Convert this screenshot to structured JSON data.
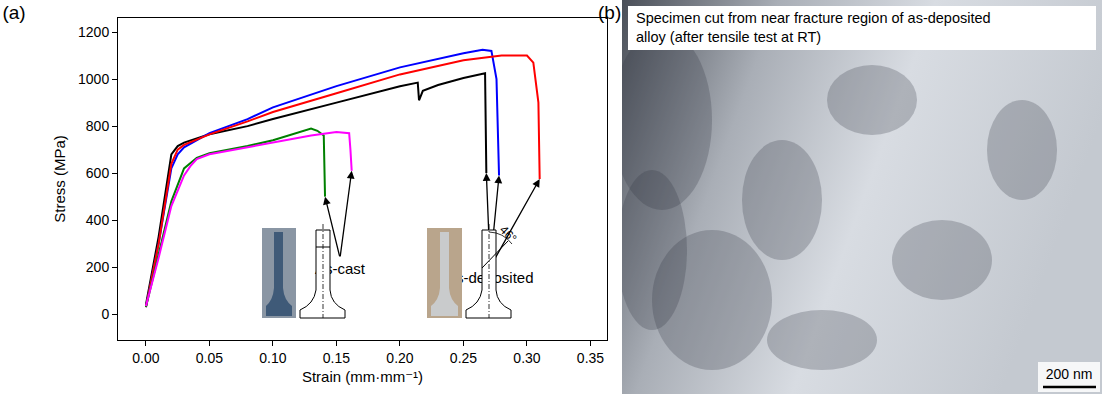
{
  "chart_data": {
    "type": "line",
    "title": "(a)",
    "x_label": "Strain (mm·mm⁻¹)",
    "y_label": "Stress (MPa)",
    "xlim": [
      -0.022,
      0.363
    ],
    "ylim": [
      -110,
      1260
    ],
    "xticks": [
      {
        "value": 0,
        "label": "0.00"
      },
      0.05,
      {
        "value": 0.1,
        "label": "0.10"
      },
      0.15,
      {
        "value": 0.2,
        "label": "0.20"
      },
      0.25,
      {
        "value": 0.3,
        "label": "0.30"
      },
      0.35
    ],
    "yticks": [
      0,
      200,
      400,
      600,
      800,
      1000,
      1200
    ],
    "grid": false,
    "series": [
      {
        "color": "#000000",
        "x": [
          0,
          0.01,
          0.02,
          0.025,
          0.03,
          0.05,
          0.08,
          0.1,
          0.15,
          0.2,
          0.214,
          0.215,
          0.218,
          0.23,
          0.25,
          0.265,
          0.267,
          0.268
        ],
        "values": [
          40,
          330,
          680,
          715,
          730,
          765,
          800,
          830,
          900,
          970,
          985,
          910,
          950,
          975,
          1005,
          1025,
          1025,
          600
        ]
      },
      {
        "color": "#0000ff",
        "x": [
          0,
          0.01,
          0.02,
          0.025,
          0.03,
          0.05,
          0.08,
          0.1,
          0.15,
          0.2,
          0.25,
          0.265,
          0.272,
          0.276,
          0.278
        ],
        "values": [
          30,
          300,
          620,
          680,
          710,
          770,
          830,
          880,
          970,
          1050,
          1110,
          1125,
          1120,
          1000,
          590
        ]
      },
      {
        "color": "#ff0000",
        "x": [
          0,
          0.01,
          0.02,
          0.025,
          0.03,
          0.05,
          0.08,
          0.1,
          0.15,
          0.2,
          0.25,
          0.28,
          0.3,
          0.305,
          0.309,
          0.31
        ],
        "values": [
          30,
          300,
          640,
          700,
          720,
          765,
          820,
          860,
          940,
          1020,
          1080,
          1100,
          1100,
          1070,
          900,
          575
        ]
      },
      {
        "color": "#008000",
        "x": [
          0,
          0.01,
          0.02,
          0.03,
          0.04,
          0.05,
          0.08,
          0.1,
          0.12,
          0.13,
          0.135,
          0.14,
          0.141
        ],
        "values": [
          30,
          250,
          480,
          620,
          665,
          685,
          715,
          740,
          775,
          790,
          780,
          760,
          500
        ]
      },
      {
        "color": "#ff00ff",
        "x": [
          0,
          0.01,
          0.02,
          0.03,
          0.035,
          0.04,
          0.05,
          0.08,
          0.1,
          0.13,
          0.15,
          0.16,
          0.161,
          0.162
        ],
        "values": [
          35,
          240,
          460,
          590,
          630,
          660,
          680,
          710,
          730,
          760,
          775,
          770,
          700,
          610
        ]
      }
    ],
    "annotations": [
      {
        "text": "As-cast",
        "points": [
          [
            0.141,
            500
          ],
          [
            0.162,
            610
          ]
        ]
      },
      {
        "text": "As-deposited",
        "points": [
          [
            0.268,
            600
          ],
          [
            0.278,
            590
          ],
          [
            0.31,
            575
          ]
        ]
      }
    ],
    "inset_text": "46°"
  },
  "image_panel": {
    "label": "(b)",
    "caption": [
      "Specimen cut from near fracture region of as-deposited",
      "alloy (after tensile test at RT)"
    ],
    "scale_bar": "200 nm"
  }
}
